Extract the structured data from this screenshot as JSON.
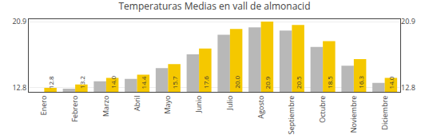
{
  "chart_data": {
    "type": "bar",
    "title": "Temperaturas Medias en vall de almonacid",
    "categories": [
      "Enero",
      "Febrero",
      "Marzo",
      "Abril",
      "Mayo",
      "Junio",
      "Julio",
      "Agosto",
      "Septiembre",
      "Octubre",
      "Noviembre",
      "Diciembre"
    ],
    "series": [
      {
        "color": "#B8B8B8",
        "values": [
          12.3,
          12.7,
          13.6,
          13.9,
          15.2,
          16.9,
          19.3,
          20.2,
          19.8,
          17.8,
          15.5,
          13.4
        ]
      },
      {
        "color": "#F5C800",
        "values": [
          12.8,
          13.2,
          14.0,
          14.4,
          15.7,
          17.6,
          20.0,
          20.9,
          20.5,
          18.5,
          16.3,
          14.0
        ],
        "data_labels": true,
        "value_labels": [
          "12.8",
          "13.2",
          "14.0",
          "14.4",
          "15.7",
          "17.6",
          "20.0",
          "20.9",
          "20.5",
          "18.5",
          "16.3",
          "14.0"
        ]
      }
    ],
    "ylim": [
      12.3,
      21.2
    ],
    "yticks": [
      12.8,
      20.9
    ],
    "y2lim": [
      12.3,
      21.2
    ],
    "y2ticks": [
      12.8,
      20.9
    ],
    "grid": true
  }
}
